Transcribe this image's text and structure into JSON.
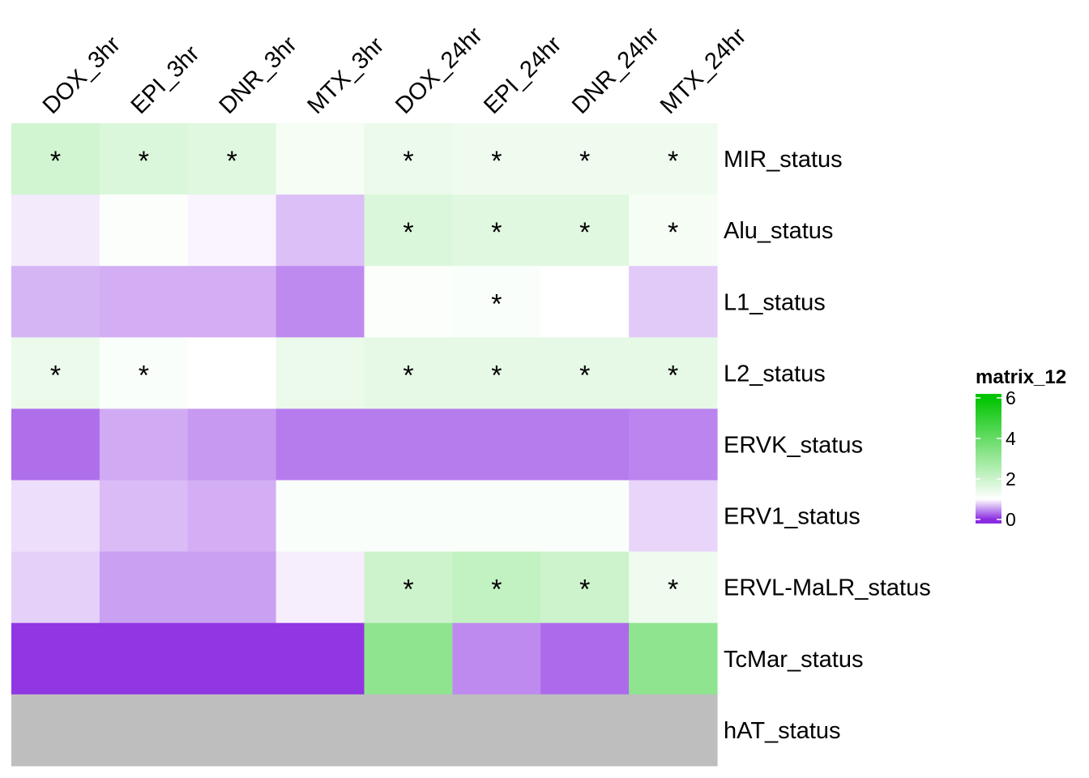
{
  "chart_data": {
    "type": "heatmap",
    "columns": [
      "DOX_3hr",
      "EPI_3hr",
      "DNR_3hr",
      "MTX_3hr",
      "DOX_24hr",
      "EPI_24hr",
      "DNR_24hr",
      "MTX_24hr"
    ],
    "rows": [
      "MIR_status",
      "Alu_status",
      "L1_status",
      "L2_status",
      "ERVK_status",
      "ERV1_status",
      "ERVL-MaLR_status",
      "TcMar_status",
      "hAT_status"
    ],
    "values": [
      [
        1.9,
        1.7,
        1.6,
        1.2,
        1.4,
        1.3,
        1.3,
        1.3
      ],
      [
        0.9,
        1.05,
        0.95,
        0.7,
        1.7,
        1.6,
        1.6,
        1.2
      ],
      [
        0.65,
        0.62,
        0.62,
        0.45,
        1.05,
        1.1,
        1.0,
        0.75
      ],
      [
        1.4,
        1.1,
        1.0,
        1.4,
        1.5,
        1.5,
        1.5,
        1.5
      ],
      [
        0.32,
        0.6,
        0.52,
        0.38,
        0.38,
        0.38,
        0.38,
        0.42
      ],
      [
        0.85,
        0.68,
        0.62,
        1.1,
        1.1,
        1.1,
        1.1,
        0.8
      ],
      [
        0.78,
        0.55,
        0.55,
        0.92,
        2.0,
        2.2,
        2.0,
        1.3
      ],
      [
        0.05,
        0.05,
        0.05,
        0.05,
        3.2,
        0.45,
        0.3,
        3.2
      ],
      [
        null,
        null,
        null,
        null,
        null,
        null,
        null,
        null
      ]
    ],
    "significant": [
      [
        1,
        1,
        1,
        0,
        1,
        1,
        1,
        1
      ],
      [
        0,
        0,
        0,
        0,
        1,
        1,
        1,
        1
      ],
      [
        0,
        0,
        0,
        0,
        0,
        1,
        0,
        0
      ],
      [
        1,
        1,
        0,
        0,
        1,
        1,
        1,
        1
      ],
      [
        0,
        0,
        0,
        0,
        0,
        0,
        0,
        0
      ],
      [
        0,
        0,
        0,
        0,
        0,
        0,
        0,
        0
      ],
      [
        0,
        0,
        0,
        0,
        1,
        1,
        1,
        1
      ],
      [
        0,
        0,
        0,
        0,
        0,
        0,
        0,
        0
      ],
      [
        0,
        0,
        0,
        0,
        0,
        0,
        0,
        0
      ]
    ],
    "significance_marker": "*",
    "na_color": "#BEBEBE",
    "color_scale": {
      "stops": [
        {
          "value": 0,
          "color": "#8A2BE2"
        },
        {
          "value": 1,
          "color": "#FFFFFF"
        },
        {
          "value": 6,
          "color": "#00C400"
        }
      ]
    },
    "legend": {
      "title": "matrix_12",
      "ticks": [
        "6",
        "4",
        "2",
        "0"
      ],
      "tick_values": [
        6,
        4,
        2,
        0
      ],
      "range": [
        -0.2,
        6.2
      ],
      "placement": "right"
    }
  }
}
